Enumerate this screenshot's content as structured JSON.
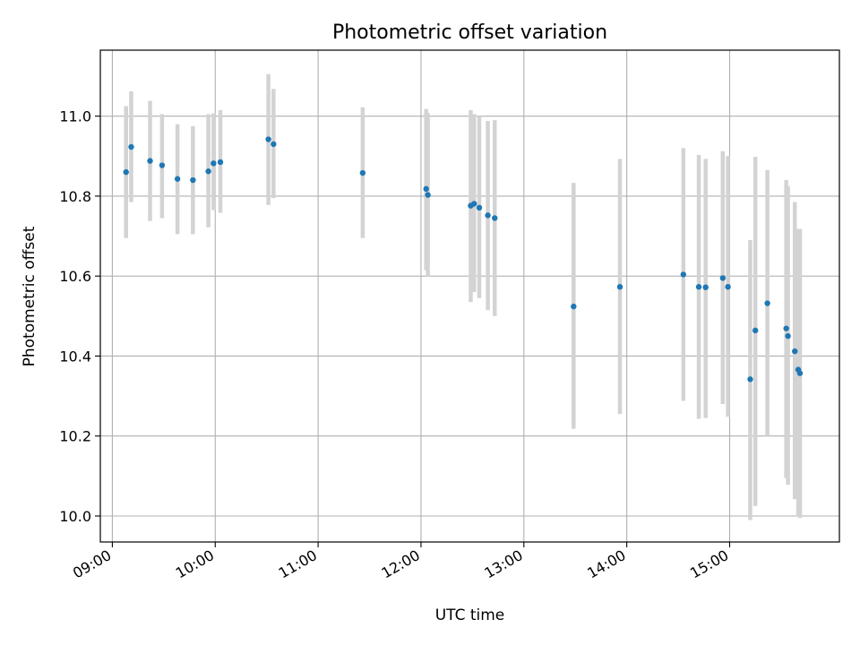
{
  "chart_data": {
    "type": "scatter",
    "title": "Photometric offset variation",
    "xlabel": "UTC time",
    "ylabel": "Photometric offset",
    "grid": true,
    "legend": "none",
    "x_ticks": [
      "09:00",
      "10:00",
      "11:00",
      "12:00",
      "13:00",
      "14:00",
      "15:00"
    ],
    "y_ticks": [
      "10.0",
      "10.2",
      "10.4",
      "10.6",
      "10.8",
      "11.0"
    ],
    "xlim": [
      "08:53",
      "16:04"
    ],
    "ylim": [
      9.935,
      11.165
    ],
    "colors": {
      "point": "#1f77b4",
      "errorbar": "#d3d3d3",
      "grid": "#b0b0b0"
    },
    "series": [
      {
        "marker": "point",
        "points": [
          {
            "t": "09:08",
            "y": 10.86,
            "lo": 10.695,
            "hi": 11.025
          },
          {
            "t": "09:11",
            "y": 10.923,
            "lo": 10.785,
            "hi": 11.062
          },
          {
            "t": "09:22",
            "y": 10.888,
            "lo": 10.738,
            "hi": 11.038
          },
          {
            "t": "09:29",
            "y": 10.877,
            "lo": 10.745,
            "hi": 11.005
          },
          {
            "t": "09:38",
            "y": 10.843,
            "lo": 10.705,
            "hi": 10.98
          },
          {
            "t": "09:47",
            "y": 10.84,
            "lo": 10.705,
            "hi": 10.975
          },
          {
            "t": "09:56",
            "y": 10.862,
            "lo": 10.722,
            "hi": 11.005
          },
          {
            "t": "09:59",
            "y": 10.882,
            "lo": 10.765,
            "hi": 11.007
          },
          {
            "t": "10:03",
            "y": 10.885,
            "lo": 10.758,
            "hi": 11.015
          },
          {
            "t": "10:31",
            "y": 10.942,
            "lo": 10.778,
            "hi": 11.105
          },
          {
            "t": "10:34",
            "y": 10.93,
            "lo": 10.795,
            "hi": 11.068
          },
          {
            "t": "11:26",
            "y": 10.858,
            "lo": 10.695,
            "hi": 11.022
          },
          {
            "t": "12:03",
            "y": 10.818,
            "lo": 10.615,
            "hi": 11.018
          },
          {
            "t": "12:04",
            "y": 10.803,
            "lo": 10.598,
            "hi": 11.008
          },
          {
            "t": "12:29",
            "y": 10.776,
            "lo": 10.535,
            "hi": 11.015
          },
          {
            "t": "12:31",
            "y": 10.781,
            "lo": 10.56,
            "hi": 11.005
          },
          {
            "t": "12:34",
            "y": 10.771,
            "lo": 10.545,
            "hi": 11.0
          },
          {
            "t": "12:39",
            "y": 10.752,
            "lo": 10.515,
            "hi": 10.988
          },
          {
            "t": "12:43",
            "y": 10.745,
            "lo": 10.5,
            "hi": 10.99
          },
          {
            "t": "13:29",
            "y": 10.524,
            "lo": 10.218,
            "hi": 10.833
          },
          {
            "t": "13:56",
            "y": 10.573,
            "lo": 10.255,
            "hi": 10.893
          },
          {
            "t": "14:33",
            "y": 10.604,
            "lo": 10.288,
            "hi": 10.92
          },
          {
            "t": "14:42",
            "y": 10.573,
            "lo": 10.243,
            "hi": 10.903
          },
          {
            "t": "14:46",
            "y": 10.572,
            "lo": 10.245,
            "hi": 10.893
          },
          {
            "t": "14:56",
            "y": 10.595,
            "lo": 10.28,
            "hi": 10.912
          },
          {
            "t": "14:59",
            "y": 10.573,
            "lo": 10.248,
            "hi": 10.9
          },
          {
            "t": "15:12",
            "y": 10.342,
            "lo": 9.99,
            "hi": 10.69
          },
          {
            "t": "15:15",
            "y": 10.464,
            "lo": 10.025,
            "hi": 10.898
          },
          {
            "t": "15:22",
            "y": 10.532,
            "lo": 10.2,
            "hi": 10.865
          },
          {
            "t": "15:33",
            "y": 10.469,
            "lo": 10.095,
            "hi": 10.84
          },
          {
            "t": "15:34",
            "y": 10.45,
            "lo": 10.078,
            "hi": 10.825
          },
          {
            "t": "15:38",
            "y": 10.412,
            "lo": 10.042,
            "hi": 10.785
          },
          {
            "t": "15:40",
            "y": 10.366,
            "lo": 10.0,
            "hi": 10.718
          },
          {
            "t": "15:41",
            "y": 10.357,
            "lo": 9.995,
            "hi": 10.718
          }
        ]
      }
    ]
  }
}
